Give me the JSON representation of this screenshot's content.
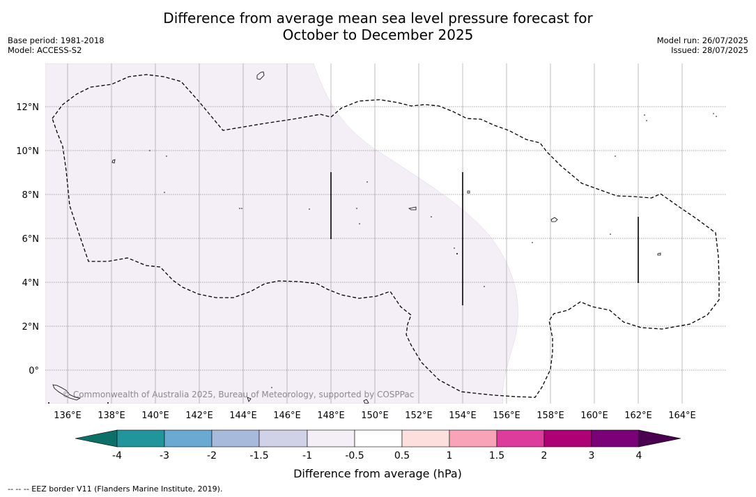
{
  "header": {
    "title_line1": "Difference from average mean sea level pressure forecast for",
    "title_line2": "October to December 2025",
    "base_period": "Base period: 1981-2018",
    "model": "Model: ACCESS-S2",
    "model_run": "Model run: 26/07/2025",
    "issued": "Issued: 28/07/2025"
  },
  "map": {
    "lon_labels": [
      "136°E",
      "138°E",
      "140°E",
      "142°E",
      "144°E",
      "146°E",
      "148°E",
      "150°E",
      "152°E",
      "154°E",
      "156°E",
      "158°E",
      "160°E",
      "162°E",
      "164°E"
    ],
    "lat_labels": [
      "12°N",
      "10°N",
      "8°N",
      "6°N",
      "4°N",
      "2°N",
      "0°"
    ],
    "copyright": "© Commonwealth of Australia 2025, Bureau of Meteorology, supported by COSPPac",
    "shaded_category": "-1 to -0.5",
    "shaded_color": "#f4eef6"
  },
  "legend": {
    "title": "Difference from average (hPa)",
    "ticks": [
      "-4",
      "-3",
      "-2",
      "-1.5",
      "-1",
      "-0.5",
      "0.5",
      "1",
      "1.5",
      "2",
      "3",
      "4"
    ],
    "colors": [
      "#0c7068",
      "#21959c",
      "#6aaad2",
      "#a8badc",
      "#d0d2e8",
      "#f4eef6",
      "#ffffff",
      "#fde0dd",
      "#f9a3b8",
      "#dd3c9c",
      "#ae0176",
      "#7a0178",
      "#4a004e"
    ]
  },
  "footer": {
    "eez_note": "--  --  -- EEZ border V11 (Flanders Marine Institute, 2019)."
  }
}
